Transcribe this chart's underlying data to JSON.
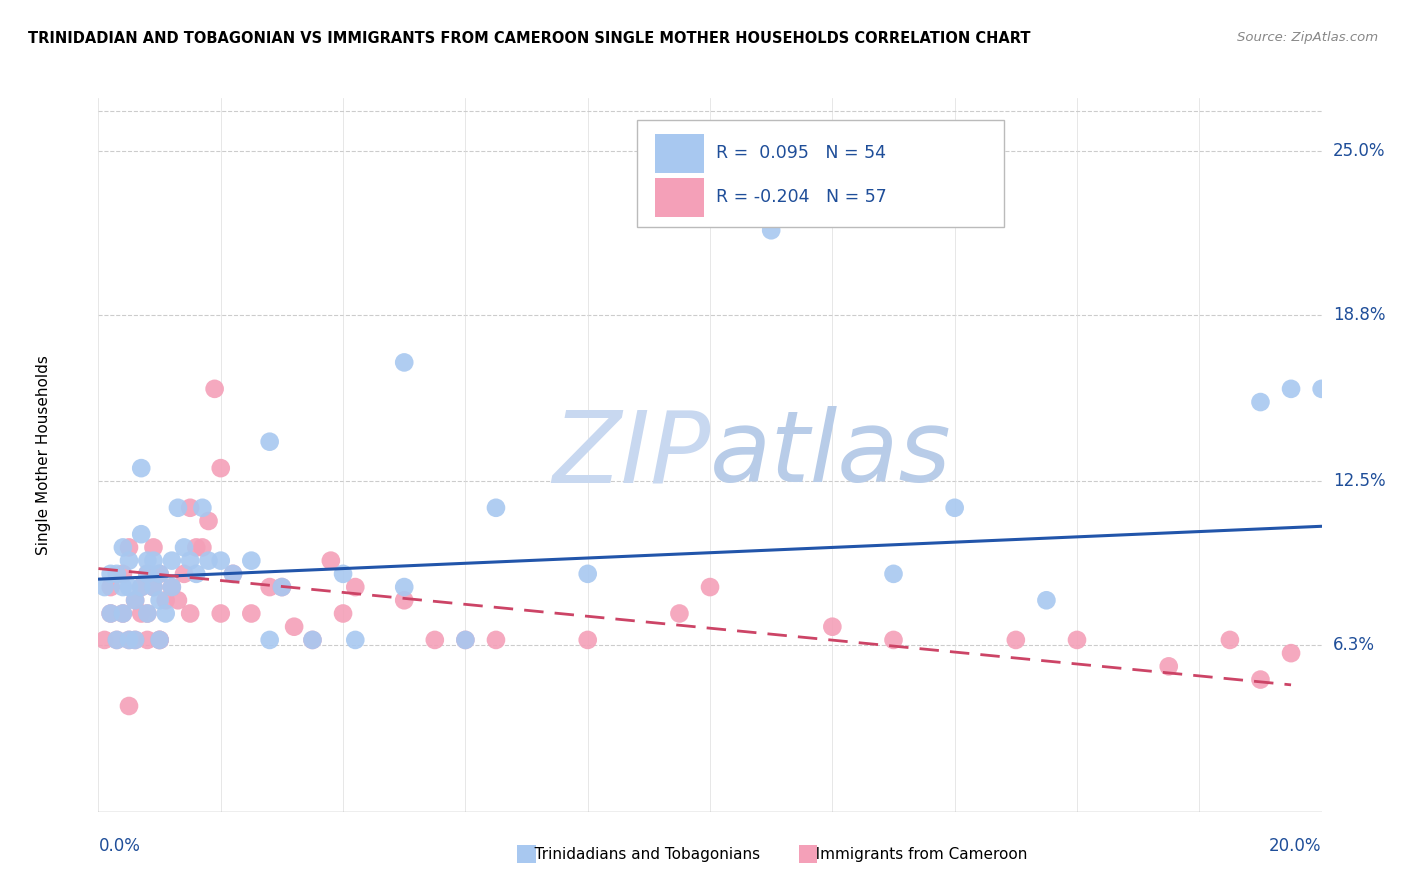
{
  "title": "TRINIDADIAN AND TOBAGONIAN VS IMMIGRANTS FROM CAMEROON SINGLE MOTHER HOUSEHOLDS CORRELATION CHART",
  "source": "Source: ZipAtlas.com",
  "ylabel": "Single Mother Households",
  "ylabel_ticks": [
    "6.3%",
    "12.5%",
    "18.8%",
    "25.0%"
  ],
  "ylabel_tick_vals": [
    0.063,
    0.125,
    0.188,
    0.25
  ],
  "xmin": 0.0,
  "xmax": 0.2,
  "ymin": 0.0,
  "ymax": 0.27,
  "legend_r1": "R =  0.095",
  "legend_n1": "N = 54",
  "legend_r2": "R = -0.204",
  "legend_n2": "N = 57",
  "color_blue": "#A8C8F0",
  "color_pink": "#F4A0B8",
  "color_blue_line": "#2255AA",
  "color_pink_line": "#CC4466",
  "color_line_blue": "#1F4E99",
  "watermark_color": "#C8D8F0",
  "series1_x": [
    0.001,
    0.002,
    0.002,
    0.003,
    0.003,
    0.004,
    0.004,
    0.004,
    0.005,
    0.005,
    0.005,
    0.006,
    0.006,
    0.007,
    0.007,
    0.007,
    0.008,
    0.008,
    0.008,
    0.009,
    0.009,
    0.01,
    0.01,
    0.01,
    0.011,
    0.012,
    0.012,
    0.013,
    0.014,
    0.015,
    0.016,
    0.017,
    0.018,
    0.02,
    0.022,
    0.025,
    0.028,
    0.03,
    0.035,
    0.04,
    0.042,
    0.05,
    0.06,
    0.065,
    0.08,
    0.11,
    0.13,
    0.14,
    0.155,
    0.19,
    0.195,
    0.2,
    0.05,
    0.028
  ],
  "series1_y": [
    0.085,
    0.09,
    0.075,
    0.065,
    0.09,
    0.1,
    0.085,
    0.075,
    0.085,
    0.095,
    0.065,
    0.065,
    0.08,
    0.105,
    0.13,
    0.085,
    0.095,
    0.09,
    0.075,
    0.085,
    0.095,
    0.09,
    0.08,
    0.065,
    0.075,
    0.085,
    0.095,
    0.115,
    0.1,
    0.095,
    0.09,
    0.115,
    0.095,
    0.095,
    0.09,
    0.095,
    0.065,
    0.085,
    0.065,
    0.09,
    0.065,
    0.085,
    0.065,
    0.115,
    0.09,
    0.22,
    0.09,
    0.115,
    0.08,
    0.155,
    0.16,
    0.16,
    0.17,
    0.14
  ],
  "series2_x": [
    0.001,
    0.002,
    0.002,
    0.003,
    0.004,
    0.004,
    0.005,
    0.005,
    0.006,
    0.006,
    0.007,
    0.007,
    0.008,
    0.008,
    0.009,
    0.009,
    0.01,
    0.01,
    0.011,
    0.012,
    0.013,
    0.014,
    0.015,
    0.016,
    0.017,
    0.018,
    0.019,
    0.02,
    0.022,
    0.025,
    0.028,
    0.03,
    0.032,
    0.035,
    0.038,
    0.04,
    0.042,
    0.05,
    0.055,
    0.06,
    0.065,
    0.08,
    0.095,
    0.1,
    0.12,
    0.13,
    0.15,
    0.16,
    0.175,
    0.185,
    0.19,
    0.195,
    0.02,
    0.015,
    0.01,
    0.008,
    0.005
  ],
  "series2_y": [
    0.065,
    0.085,
    0.075,
    0.065,
    0.09,
    0.075,
    0.065,
    0.1,
    0.065,
    0.08,
    0.085,
    0.075,
    0.065,
    0.09,
    0.1,
    0.085,
    0.065,
    0.09,
    0.08,
    0.085,
    0.08,
    0.09,
    0.115,
    0.1,
    0.1,
    0.11,
    0.16,
    0.075,
    0.09,
    0.075,
    0.085,
    0.085,
    0.07,
    0.065,
    0.095,
    0.075,
    0.085,
    0.08,
    0.065,
    0.065,
    0.065,
    0.065,
    0.075,
    0.085,
    0.07,
    0.065,
    0.065,
    0.065,
    0.055,
    0.065,
    0.05,
    0.06,
    0.13,
    0.075,
    0.065,
    0.075,
    0.04
  ],
  "trend1_x": [
    0.0,
    0.2
  ],
  "trend1_y": [
    0.088,
    0.108
  ],
  "trend2_x": [
    0.0,
    0.195
  ],
  "trend2_y": [
    0.092,
    0.048
  ]
}
